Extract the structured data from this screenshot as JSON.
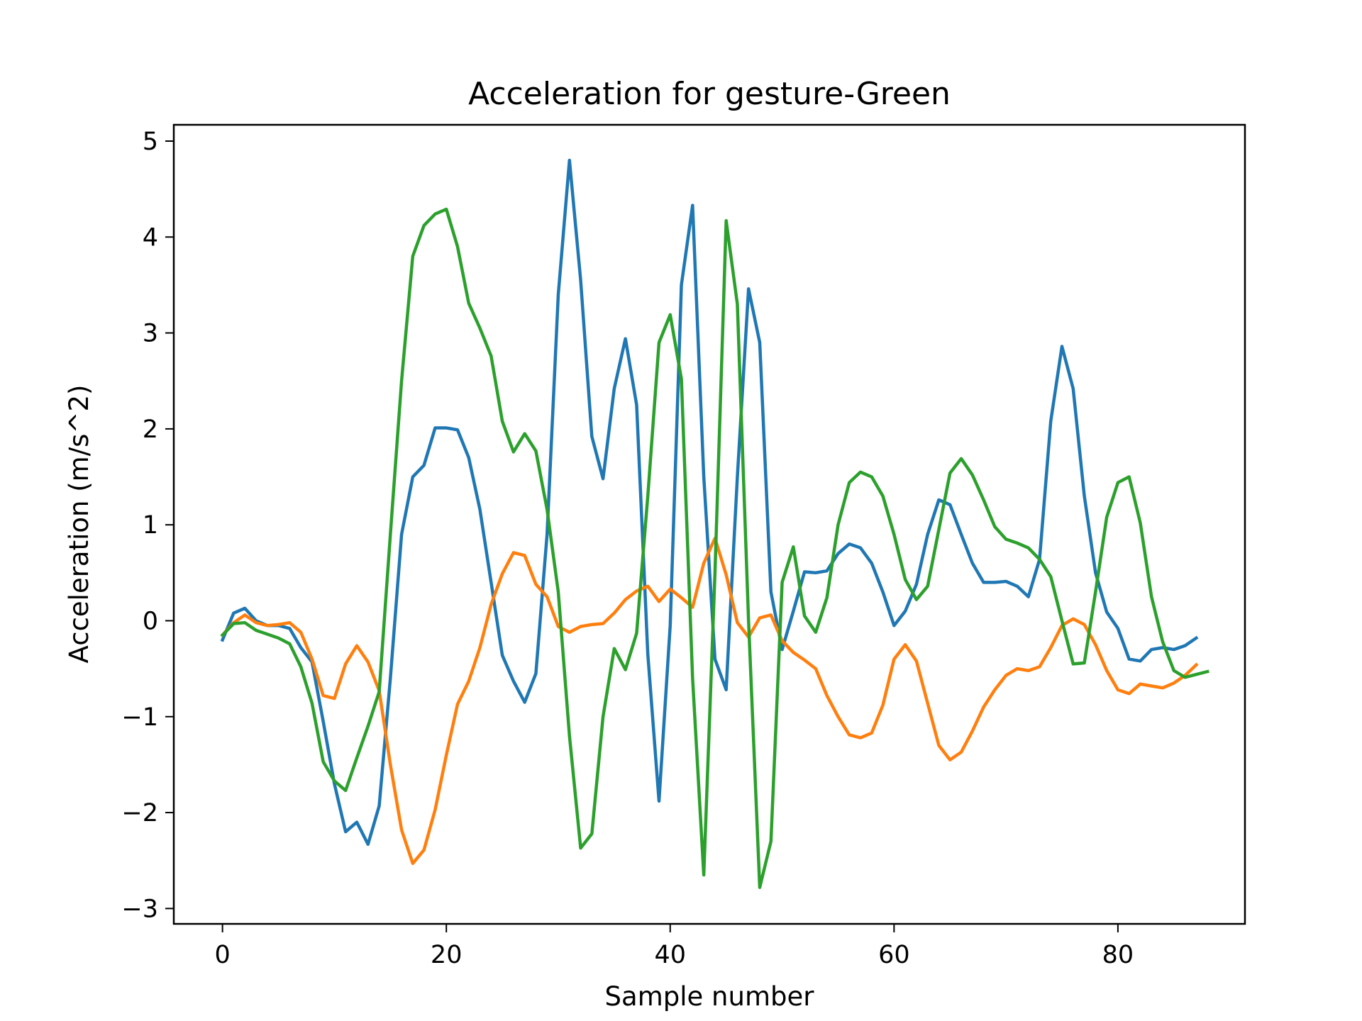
{
  "chart_data": {
    "type": "line",
    "title": "Acceleration for gesture-Green",
    "xlabel": "Sample number",
    "ylabel": "Acceleration (m/s^2)",
    "xlim": [
      -4.35,
      91.35
    ],
    "ylim": [
      -3.16,
      5.17
    ],
    "xticks": [
      0,
      20,
      40,
      60,
      80
    ],
    "yticks": [
      -3,
      -2,
      -1,
      0,
      1,
      2,
      3,
      4,
      5
    ],
    "ytick_labels": [
      "−3",
      "−2",
      "−1",
      "0",
      "1",
      "2",
      "3",
      "4",
      "5"
    ],
    "grid": false,
    "legend": "none",
    "series": [
      {
        "color": "#1f77b4",
        "values": [
          -0.2,
          0.08,
          0.13,
          0.0,
          -0.05,
          -0.05,
          -0.08,
          -0.28,
          -0.43,
          -1.05,
          -1.7,
          -2.2,
          -2.1,
          -2.33,
          -1.93,
          -0.6,
          0.9,
          1.5,
          1.62,
          2.01,
          2.01,
          1.99,
          1.7,
          1.16,
          0.4,
          -0.36,
          -0.63,
          -0.85,
          -0.55,
          0.9,
          3.4,
          4.8,
          3.55,
          1.92,
          1.48,
          2.42,
          2.94,
          2.25,
          -0.35,
          -1.88,
          -0.05,
          3.5,
          4.33,
          1.5,
          -0.4,
          -0.72,
          1.5,
          3.46,
          2.9,
          0.3,
          -0.3,
          0.1,
          0.51,
          0.5,
          0.52,
          0.7,
          0.8,
          0.76,
          0.6,
          0.3,
          -0.05,
          0.1,
          0.38,
          0.9,
          1.26,
          1.21,
          0.9,
          0.6,
          0.4,
          0.4,
          0.41,
          0.36,
          0.25,
          0.64,
          2.08,
          2.86,
          2.42,
          1.3,
          0.5,
          0.09,
          -0.08,
          -0.4,
          -0.42,
          -0.3,
          -0.28,
          -0.3,
          -0.26,
          -0.18
        ]
      },
      {
        "color": "#ff7f0e",
        "values": [
          -0.15,
          -0.02,
          0.06,
          -0.02,
          -0.05,
          -0.04,
          -0.02,
          -0.12,
          -0.4,
          -0.78,
          -0.81,
          -0.45,
          -0.26,
          -0.43,
          -0.73,
          -1.5,
          -2.18,
          -2.53,
          -2.39,
          -1.97,
          -1.4,
          -0.87,
          -0.63,
          -0.28,
          0.17,
          0.49,
          0.71,
          0.68,
          0.38,
          0.25,
          -0.06,
          -0.12,
          -0.06,
          -0.04,
          -0.03,
          0.08,
          0.22,
          0.31,
          0.36,
          0.2,
          0.33,
          0.24,
          0.14,
          0.6,
          0.86,
          0.48,
          -0.02,
          -0.17,
          0.03,
          0.06,
          -0.21,
          -0.33,
          -0.41,
          -0.5,
          -0.78,
          -1.0,
          -1.19,
          -1.22,
          -1.17,
          -0.88,
          -0.4,
          -0.25,
          -0.42,
          -0.86,
          -1.3,
          -1.45,
          -1.37,
          -1.15,
          -0.9,
          -0.72,
          -0.57,
          -0.5,
          -0.52,
          -0.48,
          -0.28,
          -0.05,
          0.02,
          -0.04,
          -0.25,
          -0.52,
          -0.72,
          -0.76,
          -0.66,
          -0.68,
          -0.7,
          -0.65,
          -0.57,
          -0.46
        ]
      },
      {
        "color": "#2ca02c",
        "values": [
          -0.15,
          -0.03,
          -0.02,
          -0.1,
          -0.14,
          -0.18,
          -0.24,
          -0.48,
          -0.86,
          -1.47,
          -1.67,
          -1.77,
          -1.43,
          -1.1,
          -0.74,
          0.9,
          2.5,
          3.8,
          4.12,
          4.24,
          4.29,
          3.9,
          3.31,
          3.05,
          2.76,
          2.08,
          1.76,
          1.95,
          1.77,
          1.16,
          0.3,
          -1.2,
          -2.37,
          -2.22,
          -1.0,
          -0.29,
          -0.51,
          -0.13,
          1.3,
          2.9,
          3.19,
          2.52,
          -0.6,
          -2.65,
          0.5,
          4.17,
          3.3,
          0.0,
          -2.78,
          -2.3,
          0.4,
          0.77,
          0.05,
          -0.12,
          0.24,
          1.0,
          1.44,
          1.55,
          1.5,
          1.3,
          0.9,
          0.43,
          0.22,
          0.36,
          0.95,
          1.54,
          1.69,
          1.52,
          1.26,
          0.98,
          0.85,
          0.81,
          0.76,
          0.64,
          0.46,
          0.0,
          -0.45,
          -0.44,
          0.3,
          1.08,
          1.44,
          1.5,
          1.02,
          0.25,
          -0.22,
          -0.52,
          -0.59,
          -0.56,
          -0.53
        ]
      }
    ]
  }
}
